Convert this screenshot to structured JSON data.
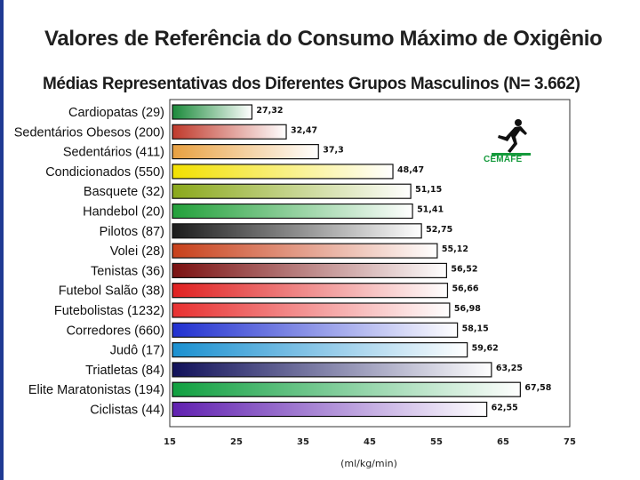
{
  "slide": {
    "title": "Valores de Referência do Consumo Máximo de Oxigênio",
    "subtitle": "Médias Representativas dos Diferentes Grupos Masculinos (N= 3.662)"
  },
  "logo": {
    "name": "CEMAFE",
    "icon": "runner-icon"
  },
  "chart_data": {
    "type": "bar",
    "orientation": "horizontal",
    "categories": [
      "Cardiopatas (29)",
      "Sedentários Obesos (200)",
      "Sedentários (411)",
      "Condicionados (550)",
      "Basquete (32)",
      "Handebol (20)",
      "Pilotos (87)",
      "Volei (28)",
      "Tenistas (36)",
      "Futebol Salão (38)",
      "Futebolistas (1232)",
      "Corredores (660)",
      "Judô (17)",
      "Triatletas (84)",
      "Elite Maratonistas (194)",
      "Ciclistas (44)"
    ],
    "values": [
      27.32,
      32.47,
      37.3,
      48.47,
      51.15,
      51.41,
      52.75,
      55.12,
      56.52,
      56.66,
      56.98,
      58.15,
      59.62,
      63.25,
      67.58,
      62.55
    ],
    "value_labels": [
      "27,32",
      "32,47",
      "37,3",
      "48,47",
      "51,15",
      "51,41",
      "52,75",
      "55,12",
      "56,52",
      "56,66",
      "56,98",
      "58,15",
      "59,62",
      "63,25",
      "67,58",
      "62,55"
    ],
    "bar_colors": [
      "#1a8a3a",
      "#c0392b",
      "#e8a040",
      "#f2e000",
      "#8aa81a",
      "#22a03a",
      "#1b1b1b",
      "#c8401a",
      "#7a1010",
      "#e02020",
      "#e83030",
      "#2030d0",
      "#1a90d0",
      "#10105a",
      "#10a040",
      "#6020b0"
    ],
    "xlim": [
      15,
      75
    ],
    "xticks": [
      15,
      25,
      35,
      45,
      55,
      65,
      75
    ],
    "xlabel": "(ml/kg/min)",
    "ylabel": "",
    "grid": false,
    "legend": false
  }
}
